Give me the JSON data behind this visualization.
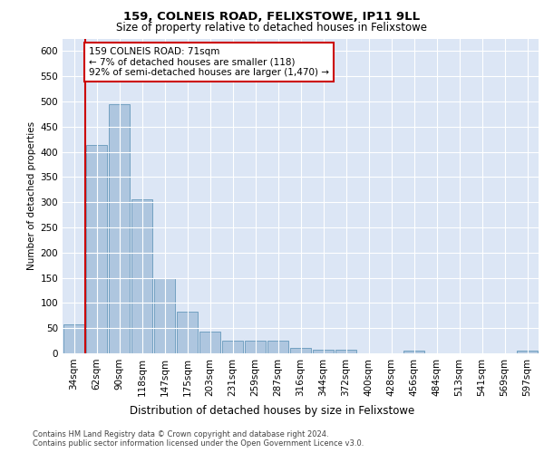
{
  "title1": "159, COLNEIS ROAD, FELIXSTOWE, IP11 9LL",
  "title2": "Size of property relative to detached houses in Felixstowe",
  "xlabel": "Distribution of detached houses by size in Felixstowe",
  "ylabel": "Number of detached properties",
  "categories": [
    "34sqm",
    "62sqm",
    "90sqm",
    "118sqm",
    "147sqm",
    "175sqm",
    "203sqm",
    "231sqm",
    "259sqm",
    "287sqm",
    "316sqm",
    "344sqm",
    "372sqm",
    "400sqm",
    "428sqm",
    "456sqm",
    "484sqm",
    "513sqm",
    "541sqm",
    "569sqm",
    "597sqm"
  ],
  "values": [
    58,
    413,
    495,
    306,
    149,
    82,
    44,
    25,
    25,
    25,
    10,
    7,
    7,
    0,
    0,
    5,
    0,
    0,
    0,
    0,
    5
  ],
  "bar_color": "#aec6df",
  "bar_edge_color": "#6699bb",
  "ref_line_x": 0.5,
  "ref_line_color": "#cc0000",
  "annotation_text": "159 COLNEIS ROAD: 71sqm\n← 7% of detached houses are smaller (118)\n92% of semi-detached houses are larger (1,470) →",
  "annotation_box_color": "white",
  "annotation_box_edge": "#cc0000",
  "ylim": [
    0,
    625
  ],
  "yticks": [
    0,
    50,
    100,
    150,
    200,
    250,
    300,
    350,
    400,
    450,
    500,
    550,
    600
  ],
  "background_color": "#dce6f5",
  "footer1": "Contains HM Land Registry data © Crown copyright and database right 2024.",
  "footer2": "Contains public sector information licensed under the Open Government Licence v3.0."
}
